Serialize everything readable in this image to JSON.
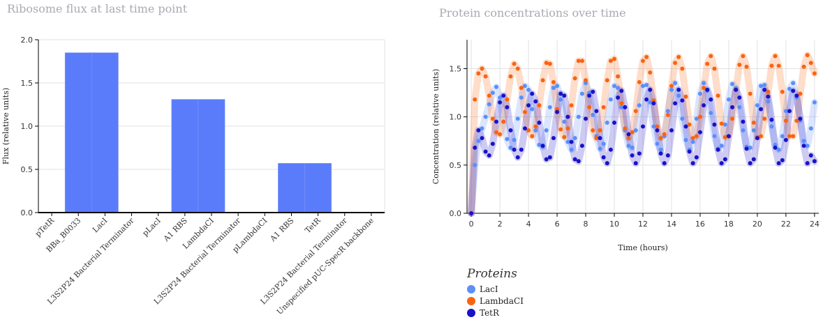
{
  "colors": {
    "bar": "#5b7cfa",
    "LacI": "#5b8ff9",
    "LambdaCI": "#fa6410",
    "TetR": "#1a12c8",
    "grid": "#e2e2e2",
    "axis": "#000000"
  },
  "chart_data": [
    {
      "type": "bar",
      "title": "Ribosome flux at last time point",
      "ylabel": "Flux (relative units)",
      "xlabel": "",
      "ylim": [
        0,
        2.0
      ],
      "yticks": [
        "0.0",
        "0.5",
        "1.0",
        "1.5",
        "2.0"
      ],
      "grid": true,
      "categories": [
        "pTetR",
        "BBa_B0033",
        "LacI",
        "L3S2P24 Bacterial Terminator",
        "pLacI",
        "A1 RBS",
        "LambdaCI",
        "L3S2P24 Bacterial Terminator",
        "pLambdaCI",
        "A1 RBS",
        "TetR",
        "L3S2P24 Bacterial Terminator",
        "Unspecified pUC-SpecR backbone"
      ],
      "values": [
        0,
        1.85,
        1.85,
        0,
        0,
        1.31,
        1.31,
        0,
        0,
        0.57,
        0.57,
        0,
        0
      ]
    },
    {
      "type": "scatter",
      "title": "Protein concentrations over time",
      "xlabel": "Time (hours)",
      "ylabel": "Concentration (relative units)",
      "xlim": [
        -0.3,
        24.3
      ],
      "ylim": [
        0,
        1.8
      ],
      "xticks": [
        "0",
        "2",
        "4",
        "6",
        "8",
        "10",
        "12",
        "14",
        "16",
        "18",
        "20",
        "22",
        "24"
      ],
      "yticks": [
        "0.0",
        "0.5",
        "1.0",
        "1.5"
      ],
      "grid": true,
      "legend_title": "Proteins",
      "legend_position": "bottom-left",
      "series": [
        {
          "name": "LacI",
          "color": "#5b8ff9",
          "x": [
            0,
            0.25,
            0.5,
            0.75,
            1,
            1.25,
            1.5,
            1.75,
            2,
            2.25,
            2.5,
            2.75,
            3,
            3.25,
            3.5,
            3.75,
            4,
            4.25,
            4.5,
            4.75,
            5,
            5.25,
            5.5,
            5.75,
            6,
            6.25,
            6.5,
            6.75,
            7,
            7.25,
            7.5,
            7.75,
            8,
            8.25,
            8.5,
            8.75,
            9,
            9.25,
            9.5,
            9.75,
            10,
            10.25,
            10.5,
            10.75,
            11,
            11.25,
            11.5,
            11.75,
            12,
            12.25,
            12.5,
            12.75,
            13,
            13.25,
            13.5,
            13.75,
            14,
            14.25,
            14.5,
            14.75,
            15,
            15.25,
            15.5,
            15.75,
            16,
            16.25,
            16.5,
            16.75,
            17,
            17.25,
            17.5,
            17.75,
            18,
            18.25,
            18.5,
            18.75,
            19,
            19.25,
            19.5,
            19.75,
            20,
            20.25,
            20.5,
            20.75,
            21,
            21.25,
            21.5,
            21.75,
            22,
            22.25,
            22.5,
            22.75,
            23,
            23.25,
            23.5,
            23.75,
            24
          ],
          "y": [
            0.0,
            0.5,
            0.75,
            0.88,
            1.0,
            1.13,
            1.25,
            1.31,
            1.2,
            0.95,
            0.77,
            0.68,
            0.76,
            0.98,
            1.2,
            1.32,
            1.28,
            1.08,
            0.86,
            0.71,
            0.69,
            0.86,
            1.1,
            1.3,
            1.32,
            1.18,
            0.95,
            0.74,
            0.66,
            0.78,
            1.0,
            1.24,
            1.35,
            1.25,
            1.02,
            0.8,
            0.67,
            0.72,
            0.94,
            1.18,
            1.32,
            1.3,
            1.1,
            0.86,
            0.7,
            0.68,
            0.86,
            1.12,
            1.32,
            1.33,
            1.15,
            0.9,
            0.72,
            0.66,
            0.8,
            1.06,
            1.28,
            1.35,
            1.22,
            0.98,
            0.76,
            0.66,
            0.74,
            0.98,
            1.24,
            1.35,
            1.27,
            1.04,
            0.8,
            0.67,
            0.7,
            0.92,
            1.18,
            1.34,
            1.3,
            1.1,
            0.86,
            0.69,
            0.68,
            0.86,
            1.12,
            1.32,
            1.33,
            1.16,
            0.9,
            0.71,
            0.66,
            0.8,
            1.06,
            1.29,
            1.35,
            1.2,
            0.96,
            0.75,
            0.7,
            0.88,
            1.15
          ]
        },
        {
          "name": "LambdaCI",
          "color": "#fa6410",
          "x": [
            0,
            0.25,
            0.5,
            0.75,
            1,
            1.25,
            1.5,
            1.75,
            2,
            2.25,
            2.5,
            2.75,
            3,
            3.25,
            3.5,
            3.75,
            4,
            4.25,
            4.5,
            4.75,
            5,
            5.25,
            5.5,
            5.75,
            6,
            6.25,
            6.5,
            6.75,
            7,
            7.25,
            7.5,
            7.75,
            8,
            8.25,
            8.5,
            8.75,
            9,
            9.25,
            9.5,
            9.75,
            10,
            10.25,
            10.5,
            10.75,
            11,
            11.25,
            11.5,
            11.75,
            12,
            12.25,
            12.5,
            12.75,
            13,
            13.25,
            13.5,
            13.75,
            14,
            14.25,
            14.5,
            14.75,
            15,
            15.25,
            15.5,
            15.75,
            16,
            16.25,
            16.5,
            16.75,
            17,
            17.25,
            17.5,
            17.75,
            18,
            18.25,
            18.5,
            18.75,
            19,
            19.25,
            19.5,
            19.75,
            20,
            20.25,
            20.5,
            20.75,
            21,
            21.25,
            21.5,
            21.75,
            22,
            22.25,
            22.5,
            22.75,
            23,
            23.25,
            23.5,
            23.75,
            24
          ],
          "y": [
            0.0,
            1.18,
            1.45,
            1.5,
            1.42,
            1.22,
            0.98,
            0.84,
            0.82,
            0.95,
            1.18,
            1.42,
            1.55,
            1.5,
            1.3,
            1.05,
            0.86,
            0.8,
            0.9,
            1.12,
            1.38,
            1.56,
            1.55,
            1.36,
            1.08,
            0.87,
            0.79,
            0.88,
            1.12,
            1.4,
            1.58,
            1.58,
            1.38,
            1.1,
            0.86,
            0.78,
            0.86,
            1.1,
            1.38,
            1.58,
            1.6,
            1.42,
            1.14,
            0.88,
            0.78,
            0.84,
            1.06,
            1.36,
            1.58,
            1.62,
            1.46,
            1.17,
            0.9,
            0.78,
            0.82,
            1.02,
            1.32,
            1.56,
            1.62,
            1.5,
            1.21,
            0.92,
            0.78,
            0.8,
            1.0,
            1.3,
            1.55,
            1.63,
            1.5,
            1.22,
            0.93,
            0.79,
            0.8,
            0.98,
            1.28,
            1.54,
            1.63,
            1.52,
            1.24,
            0.94,
            0.79,
            0.8,
            0.98,
            1.26,
            1.53,
            1.63,
            1.53,
            1.26,
            0.96,
            0.8,
            0.8,
            0.96,
            1.24,
            1.52,
            1.64,
            1.56,
            1.45
          ]
        },
        {
          "name": "TetR",
          "color": "#1a12c8",
          "x": [
            0,
            0.25,
            0.5,
            0.75,
            1,
            1.25,
            1.5,
            1.75,
            2,
            2.25,
            2.5,
            2.75,
            3,
            3.25,
            3.5,
            3.75,
            4,
            4.25,
            4.5,
            4.75,
            5,
            5.25,
            5.5,
            5.75,
            6,
            6.25,
            6.5,
            6.75,
            7,
            7.25,
            7.5,
            7.75,
            8,
            8.25,
            8.5,
            8.75,
            9,
            9.25,
            9.5,
            9.75,
            10,
            10.25,
            10.5,
            10.75,
            11,
            11.25,
            11.5,
            11.75,
            12,
            12.25,
            12.5,
            12.75,
            13,
            13.25,
            13.5,
            13.75,
            14,
            14.25,
            14.5,
            14.75,
            15,
            15.25,
            15.5,
            15.75,
            16,
            16.25,
            16.5,
            16.75,
            17,
            17.25,
            17.5,
            17.75,
            18,
            18.25,
            18.5,
            18.75,
            19,
            19.25,
            19.5,
            19.75,
            20,
            20.25,
            20.5,
            20.75,
            21,
            21.25,
            21.5,
            21.75,
            22,
            22.25,
            22.5,
            22.75,
            23,
            23.25,
            23.5,
            23.75,
            24
          ],
          "y": [
            0.0,
            0.68,
            0.86,
            0.78,
            0.64,
            0.6,
            0.72,
            0.95,
            1.15,
            1.22,
            1.1,
            0.86,
            0.66,
            0.58,
            0.66,
            0.88,
            1.12,
            1.24,
            1.16,
            0.94,
            0.7,
            0.56,
            0.58,
            0.78,
            1.05,
            1.24,
            1.22,
            1.0,
            0.74,
            0.56,
            0.54,
            0.7,
            0.98,
            1.22,
            1.26,
            1.06,
            0.78,
            0.58,
            0.52,
            0.66,
            0.94,
            1.2,
            1.27,
            1.1,
            0.82,
            0.6,
            0.52,
            0.62,
            0.9,
            1.18,
            1.28,
            1.14,
            0.86,
            0.62,
            0.52,
            0.6,
            0.86,
            1.14,
            1.28,
            1.17,
            0.9,
            0.64,
            0.52,
            0.58,
            0.84,
            1.12,
            1.28,
            1.18,
            0.92,
            0.66,
            0.52,
            0.56,
            0.8,
            1.1,
            1.28,
            1.2,
            0.95,
            0.67,
            0.52,
            0.56,
            0.78,
            1.08,
            1.28,
            1.21,
            0.97,
            0.68,
            0.52,
            0.55,
            0.76,
            1.06,
            1.27,
            1.22,
            0.98,
            0.7,
            0.52,
            0.6,
            0.54
          ]
        }
      ]
    }
  ]
}
